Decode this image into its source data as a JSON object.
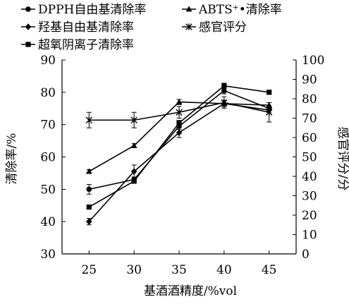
{
  "chart_data": {
    "type": "line",
    "xlabel": "基酒酒精度/%vol",
    "ylabel": "清除率/%",
    "y2label": "感官评分/分",
    "x": [
      25,
      30,
      35,
      40,
      45
    ],
    "xlim": [
      22,
      48
    ],
    "ylim": [
      30,
      90
    ],
    "y2lim": [
      0,
      100
    ],
    "yticks": [
      30,
      40,
      50,
      60,
      70,
      80,
      90
    ],
    "y2ticks": [
      0,
      10,
      20,
      30,
      40,
      50,
      60,
      70,
      80,
      90,
      100
    ],
    "grid": false,
    "legend_position": "top",
    "series": [
      {
        "name": "DPPH自由基清除率",
        "marker": "circle",
        "axis": "left",
        "values": [
          50.0,
          53.0,
          69.5,
          80.5,
          75.0
        ],
        "err": [
          1.5,
          0.8,
          1.0,
          1.0,
          0.8
        ]
      },
      {
        "name": "ABTS⁺•清除率",
        "marker": "triangle",
        "axis": "left",
        "values": [
          55.5,
          63.5,
          77.0,
          76.5,
          76.0
        ],
        "err": [
          0.6,
          0.6,
          0.8,
          1.0,
          0.8
        ]
      },
      {
        "name": "羟基自由基清除率",
        "marker": "diamond",
        "axis": "left",
        "values": [
          40.0,
          55.5,
          67.5,
          76.5,
          74.5
        ],
        "err": [
          1.0,
          2.0,
          1.5,
          1.0,
          0.8
        ]
      },
      {
        "name": "感官评分",
        "marker": "star",
        "axis": "right",
        "values": [
          69,
          69,
          73,
          78,
          73
        ],
        "err": [
          4,
          4,
          3,
          3,
          5
        ]
      },
      {
        "name": "超氧阴离子清除率",
        "marker": "square",
        "axis": "left",
        "values": [
          44.5,
          52.5,
          70.5,
          82.0,
          80.0
        ],
        "err": [
          0.5,
          0.5,
          0.8,
          0.8,
          0.5
        ]
      }
    ]
  }
}
